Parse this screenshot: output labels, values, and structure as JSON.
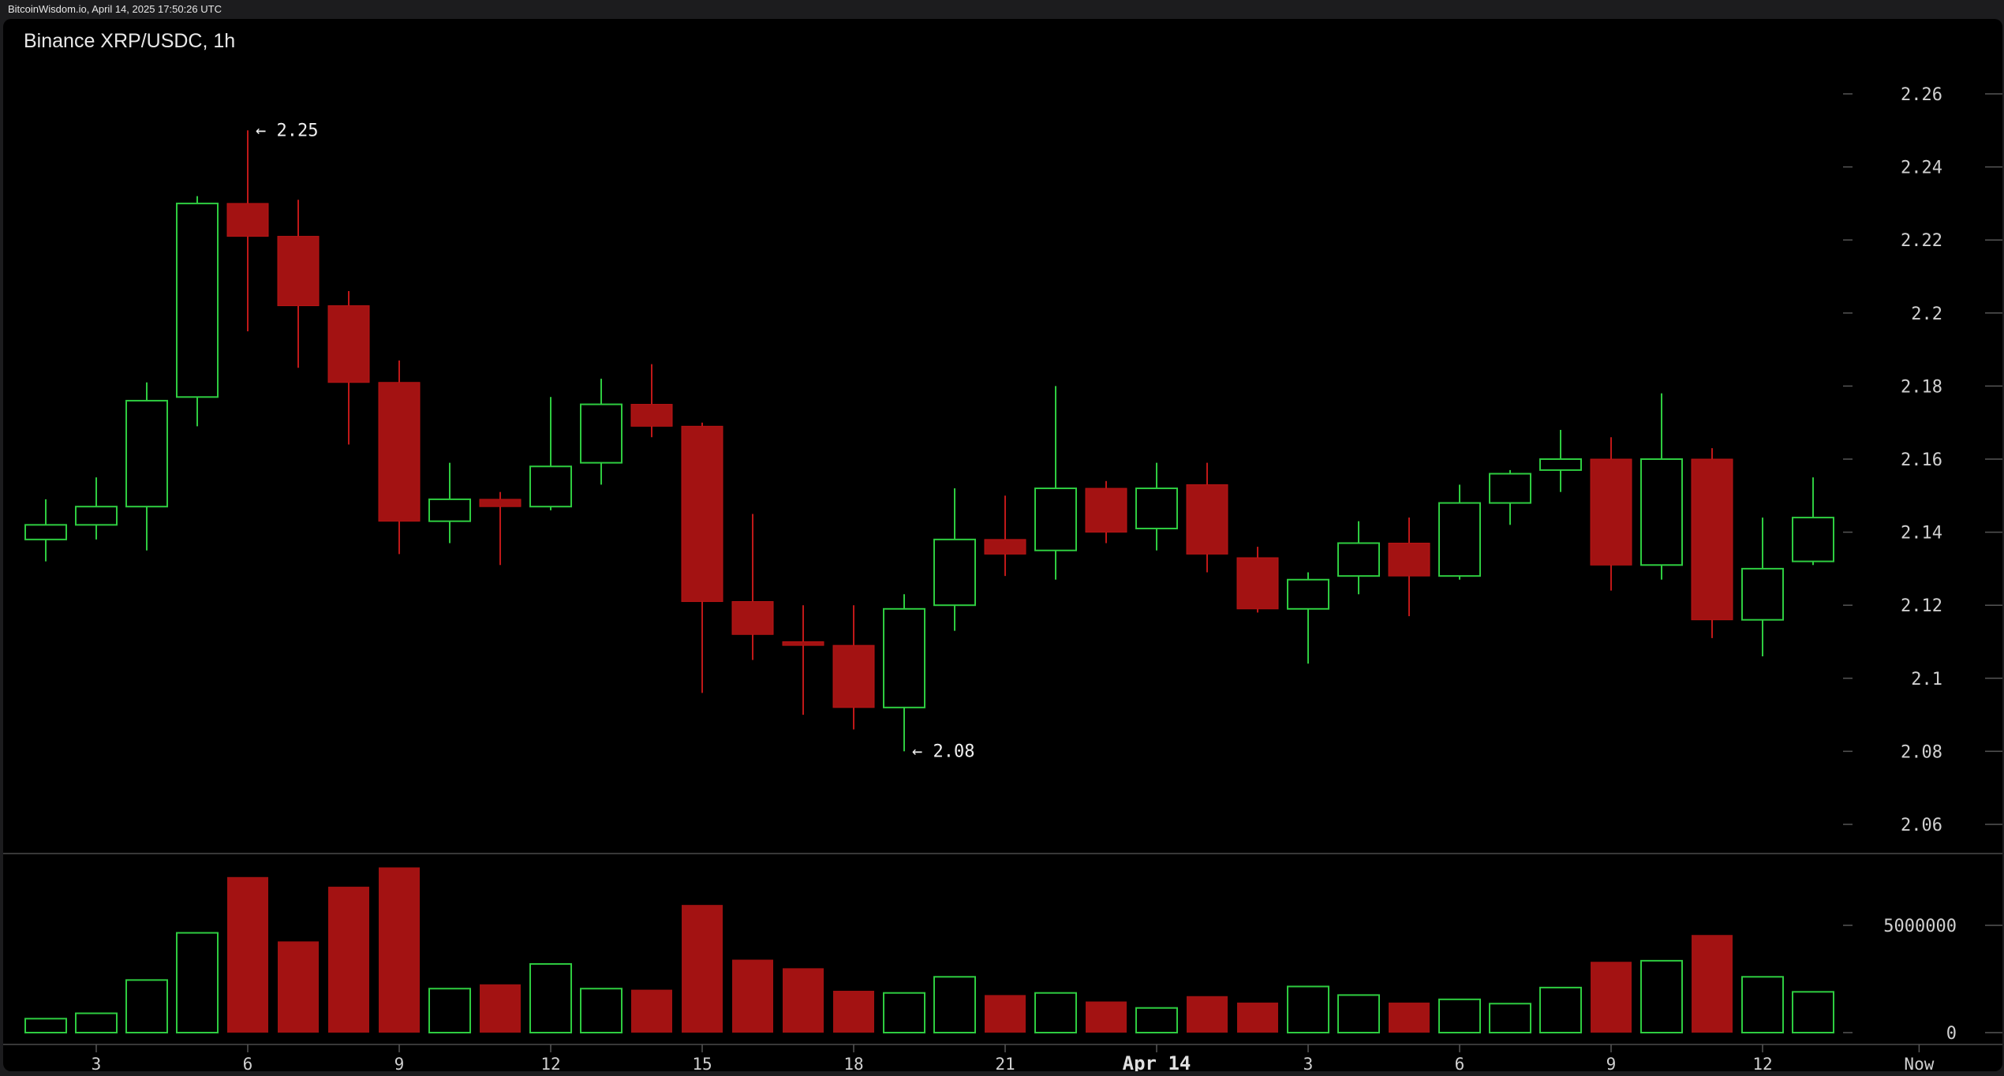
{
  "header": {
    "watermark": "BitcoinWisdom.io, April 14, 2025 17:50:26 UTC"
  },
  "chart_data": {
    "type": "candlestick",
    "title": "Binance XRP/USDC, 1h",
    "price_axis": {
      "ticks": [
        "2.26",
        "2.24",
        "2.22",
        "2.2",
        "2.18",
        "2.16",
        "2.14",
        "2.12",
        "2.1",
        "2.08",
        "2.06"
      ],
      "ylim": [
        2.05,
        2.27
      ]
    },
    "volume_axis": {
      "ticks": [
        "5000000",
        "0"
      ],
      "ylim": [
        0,
        8500000
      ]
    },
    "x_ticks": [
      {
        "label": "3",
        "index": 1
      },
      {
        "label": "6",
        "index": 4
      },
      {
        "label": "9",
        "index": 7
      },
      {
        "label": "12",
        "index": 10
      },
      {
        "label": "15",
        "index": 13
      },
      {
        "label": "18",
        "index": 16
      },
      {
        "label": "21",
        "index": 19
      },
      {
        "label": "Apr 14",
        "index": 22
      },
      {
        "label": "3",
        "index": 25
      },
      {
        "label": "6",
        "index": 28
      },
      {
        "label": "9",
        "index": 31
      },
      {
        "label": "12",
        "index": 34
      },
      {
        "label": "Now",
        "index": 37.1
      }
    ],
    "annotations": [
      {
        "text": "← 2.25",
        "index": 4,
        "price": 2.25
      },
      {
        "text": "← 2.08",
        "index": 17,
        "price": 2.08
      }
    ],
    "colors": {
      "up": "#2ecc40",
      "down": "#a31212",
      "grid": "#3a3a3a",
      "text": "#d0d0d0"
    },
    "candles": [
      {
        "o": 2.138,
        "h": 2.149,
        "l": 2.132,
        "c": 2.142,
        "v": 650000
      },
      {
        "o": 2.142,
        "h": 2.155,
        "l": 2.138,
        "c": 2.147,
        "v": 900000
      },
      {
        "o": 2.147,
        "h": 2.181,
        "l": 2.135,
        "c": 2.176,
        "v": 2450000
      },
      {
        "o": 2.177,
        "h": 2.232,
        "l": 2.169,
        "c": 2.23,
        "v": 4650000
      },
      {
        "o": 2.23,
        "h": 2.25,
        "l": 2.195,
        "c": 2.221,
        "v": 7250000
      },
      {
        "o": 2.221,
        "h": 2.231,
        "l": 2.185,
        "c": 2.202,
        "v": 4250000
      },
      {
        "o": 2.202,
        "h": 2.206,
        "l": 2.164,
        "c": 2.181,
        "v": 6800000
      },
      {
        "o": 2.181,
        "h": 2.187,
        "l": 2.134,
        "c": 2.143,
        "v": 7700000
      },
      {
        "o": 2.143,
        "h": 2.159,
        "l": 2.137,
        "c": 2.149,
        "v": 2050000
      },
      {
        "o": 2.149,
        "h": 2.151,
        "l": 2.131,
        "c": 2.147,
        "v": 2250000
      },
      {
        "o": 2.147,
        "h": 2.177,
        "l": 2.146,
        "c": 2.158,
        "v": 3200000
      },
      {
        "o": 2.159,
        "h": 2.182,
        "l": 2.153,
        "c": 2.175,
        "v": 2050000
      },
      {
        "o": 2.175,
        "h": 2.186,
        "l": 2.166,
        "c": 2.169,
        "v": 2000000
      },
      {
        "o": 2.169,
        "h": 2.17,
        "l": 2.096,
        "c": 2.121,
        "v": 5950000
      },
      {
        "o": 2.121,
        "h": 2.145,
        "l": 2.105,
        "c": 2.112,
        "v": 3400000
      },
      {
        "o": 2.11,
        "h": 2.12,
        "l": 2.09,
        "c": 2.109,
        "v": 3000000
      },
      {
        "o": 2.109,
        "h": 2.12,
        "l": 2.086,
        "c": 2.092,
        "v": 1950000
      },
      {
        "o": 2.092,
        "h": 2.123,
        "l": 2.08,
        "c": 2.119,
        "v": 1850000
      },
      {
        "o": 2.12,
        "h": 2.152,
        "l": 2.113,
        "c": 2.138,
        "v": 2600000
      },
      {
        "o": 2.138,
        "h": 2.15,
        "l": 2.128,
        "c": 2.134,
        "v": 1750000
      },
      {
        "o": 2.135,
        "h": 2.18,
        "l": 2.127,
        "c": 2.152,
        "v": 1850000
      },
      {
        "o": 2.152,
        "h": 2.154,
        "l": 2.137,
        "c": 2.14,
        "v": 1450000
      },
      {
        "o": 2.141,
        "h": 2.159,
        "l": 2.135,
        "c": 2.152,
        "v": 1150000
      },
      {
        "o": 2.153,
        "h": 2.159,
        "l": 2.129,
        "c": 2.134,
        "v": 1700000
      },
      {
        "o": 2.133,
        "h": 2.136,
        "l": 2.118,
        "c": 2.119,
        "v": 1400000
      },
      {
        "o": 2.119,
        "h": 2.129,
        "l": 2.104,
        "c": 2.127,
        "v": 2150000
      },
      {
        "o": 2.128,
        "h": 2.143,
        "l": 2.123,
        "c": 2.137,
        "v": 1750000
      },
      {
        "o": 2.137,
        "h": 2.144,
        "l": 2.117,
        "c": 2.128,
        "v": 1400000
      },
      {
        "o": 2.128,
        "h": 2.153,
        "l": 2.127,
        "c": 2.148,
        "v": 1550000
      },
      {
        "o": 2.148,
        "h": 2.157,
        "l": 2.142,
        "c": 2.156,
        "v": 1350000
      },
      {
        "o": 2.157,
        "h": 2.168,
        "l": 2.151,
        "c": 2.16,
        "v": 2100000
      },
      {
        "o": 2.16,
        "h": 2.166,
        "l": 2.124,
        "c": 2.131,
        "v": 3300000
      },
      {
        "o": 2.131,
        "h": 2.178,
        "l": 2.127,
        "c": 2.16,
        "v": 3350000
      },
      {
        "o": 2.16,
        "h": 2.163,
        "l": 2.111,
        "c": 2.116,
        "v": 4550000
      },
      {
        "o": 2.116,
        "h": 2.144,
        "l": 2.106,
        "c": 2.13,
        "v": 2600000
      },
      {
        "o": 2.132,
        "h": 2.155,
        "l": 2.131,
        "c": 2.144,
        "v": 1900000
      }
    ]
  }
}
